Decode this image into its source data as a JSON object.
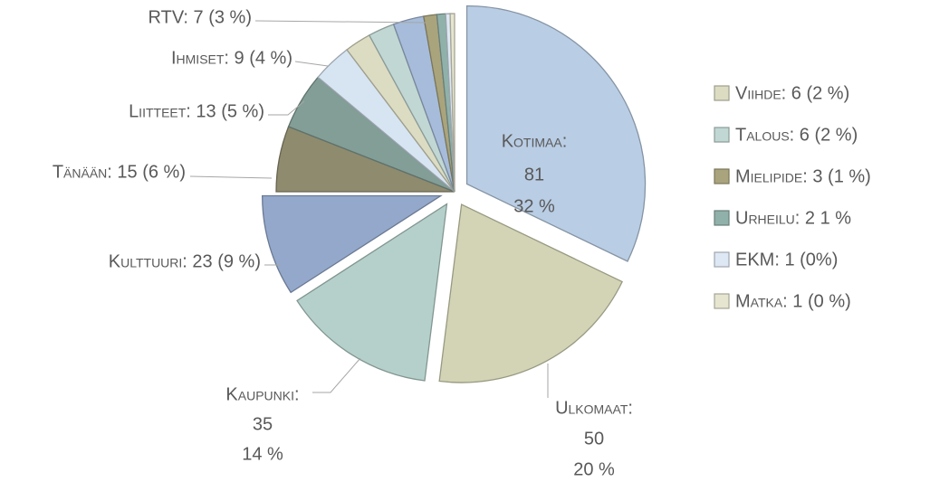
{
  "chart_data": {
    "type": "pie",
    "values": [
      81,
      50,
      35,
      23,
      15,
      13,
      9,
      6,
      6,
      7,
      3,
      2,
      1,
      1
    ],
    "labels": [
      [
        "Kotimaa:",
        "81",
        "32 %"
      ],
      [
        "Ulkomaat:",
        "50",
        "20 %"
      ],
      [
        "Kaupunki:",
        "35",
        "14 %"
      ],
      [
        "Kulttuuri: 23 (9 %)"
      ],
      [
        "Tänään: 15 (6 %)"
      ],
      [
        "Liitteet: 13 (5 %)"
      ],
      [
        "Ihmiset: 9 (4 %)"
      ],
      null,
      null,
      [
        "RTV: 7 (3 %)"
      ],
      null,
      null,
      null,
      null
    ],
    "legend_labels": [
      null,
      null,
      null,
      null,
      null,
      null,
      null,
      "Viihde: 6 (2 %)",
      "Talous: 6 (2 %)",
      null,
      "Mielipide: 3 (1 %)",
      "Urheilu: 2 1 %",
      "EKM: 1 (0%)",
      "Matka: 1 (0 %)"
    ],
    "colors": [
      "#b9cde4",
      "#d3d4b5",
      "#b5d0ca",
      "#93a8cb",
      "#8f8b6f",
      "#829e96",
      "#d7e4f2",
      "#dcdcc3",
      "#c1d7d3",
      "#a6bcda",
      "#aaa47d",
      "#90b1a9",
      "#dde8f4",
      "#e6e5d0"
    ],
    "explode": [
      true,
      true,
      true,
      true,
      false,
      false,
      false,
      false,
      false,
      false,
      false,
      false,
      false,
      false
    ]
  }
}
